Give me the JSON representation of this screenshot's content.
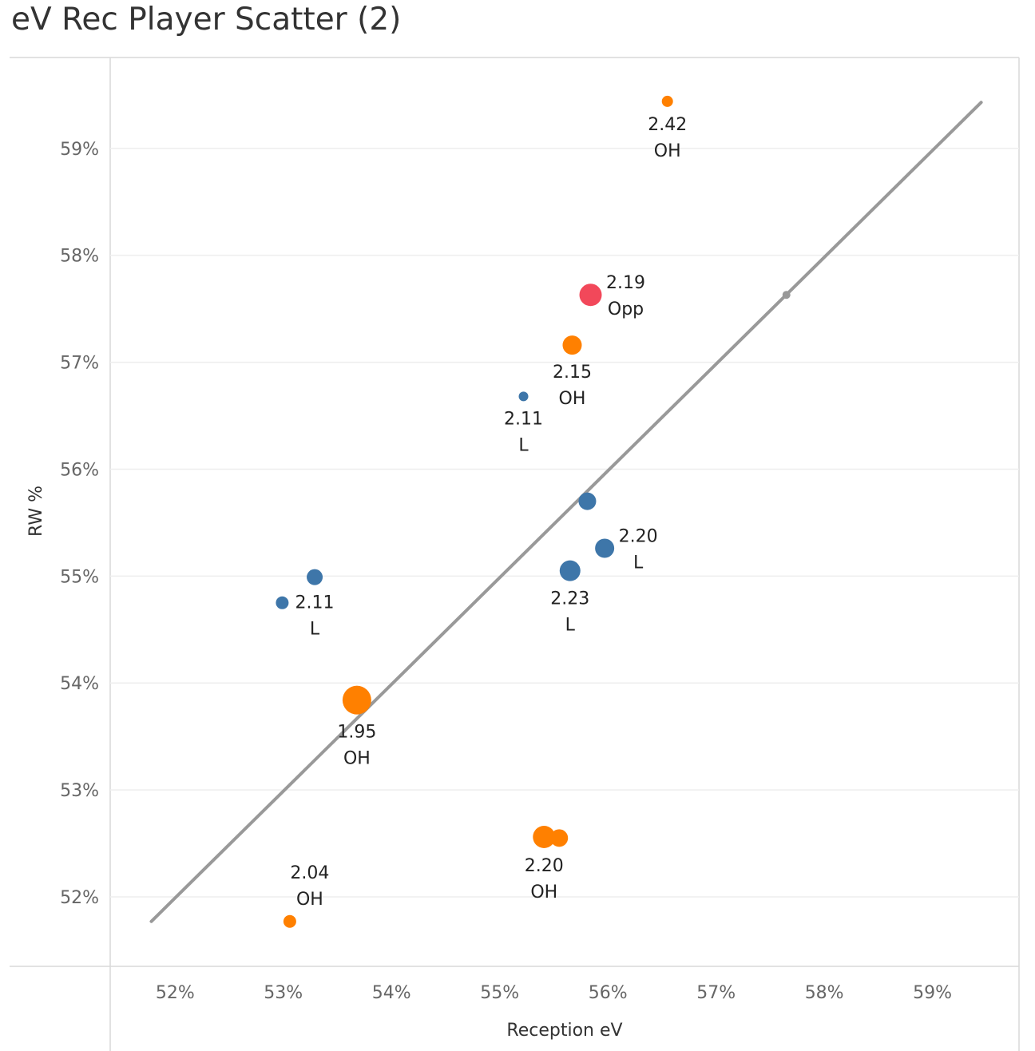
{
  "chart_data": {
    "type": "scatter",
    "title": "eV Rec Player Scatter (2)",
    "xlabel": "Reception eV",
    "ylabel": "RW %",
    "xlim": [
      51.4,
      59.8
    ],
    "ylim": [
      51.35,
      59.85
    ],
    "x_ticks": [
      52,
      53,
      54,
      55,
      56,
      57,
      58,
      59
    ],
    "y_ticks": [
      52,
      53,
      54,
      55,
      56,
      57,
      58,
      59
    ],
    "x_tick_labels": [
      "52%",
      "53%",
      "54%",
      "55%",
      "56%",
      "57%",
      "58%",
      "59%"
    ],
    "y_tick_labels": [
      "52%",
      "53%",
      "54%",
      "55%",
      "56%",
      "57%",
      "58%",
      "59%"
    ],
    "trend_line": {
      "x": [
        51.78,
        59.45
      ],
      "y": [
        51.77,
        59.43
      ],
      "marker": {
        "x": 57.65,
        "y": 57.63
      }
    },
    "colors": {
      "OH": "#ff8000",
      "L": "#3e76a9",
      "Opp": "#f2485a",
      "trend": "#999999",
      "grid": "#eeeeee"
    },
    "points": [
      {
        "x": 56.55,
        "y": 59.44,
        "size": 7,
        "group": "OH",
        "value": "2.42",
        "position": "OH",
        "label_pos": "below"
      },
      {
        "x": 55.84,
        "y": 57.63,
        "size": 14,
        "group": "Opp",
        "value": "2.19",
        "position": "Opp",
        "label_pos": "right"
      },
      {
        "x": 55.67,
        "y": 57.16,
        "size": 12,
        "group": "OH",
        "value": "2.15",
        "position": "OH",
        "label_pos": "below"
      },
      {
        "x": 55.22,
        "y": 56.68,
        "size": 6,
        "group": "L",
        "value": "2.11",
        "position": "L",
        "label_pos": "below"
      },
      {
        "x": 55.81,
        "y": 55.7,
        "size": 11,
        "group": "L",
        "value": null,
        "position": null,
        "label_pos": "none"
      },
      {
        "x": 55.97,
        "y": 55.26,
        "size": 12,
        "group": "L",
        "value": "2.20",
        "position": "L",
        "label_pos": "right"
      },
      {
        "x": 55.65,
        "y": 55.05,
        "size": 13,
        "group": "L",
        "value": "2.23",
        "position": "L",
        "label_pos": "below"
      },
      {
        "x": 53.29,
        "y": 54.99,
        "size": 10,
        "group": "L",
        "value": "2.11",
        "position": "L",
        "label_pos": "below"
      },
      {
        "x": 52.99,
        "y": 54.75,
        "size": 8,
        "group": "L",
        "value": null,
        "position": null,
        "label_pos": "none"
      },
      {
        "x": 53.68,
        "y": 53.84,
        "size": 18,
        "group": "OH",
        "value": "1.95",
        "position": "OH",
        "label_pos": "below"
      },
      {
        "x": 55.41,
        "y": 52.56,
        "size": 14,
        "group": "OH",
        "value": "2.20",
        "position": "OH",
        "label_pos": "below"
      },
      {
        "x": 55.55,
        "y": 52.55,
        "size": 11,
        "group": "OH",
        "value": null,
        "position": null,
        "label_pos": "none"
      },
      {
        "x": 53.06,
        "y": 51.77,
        "size": 8,
        "group": "OH",
        "value": "2.04",
        "position": "OH",
        "label_pos": "above"
      }
    ]
  }
}
